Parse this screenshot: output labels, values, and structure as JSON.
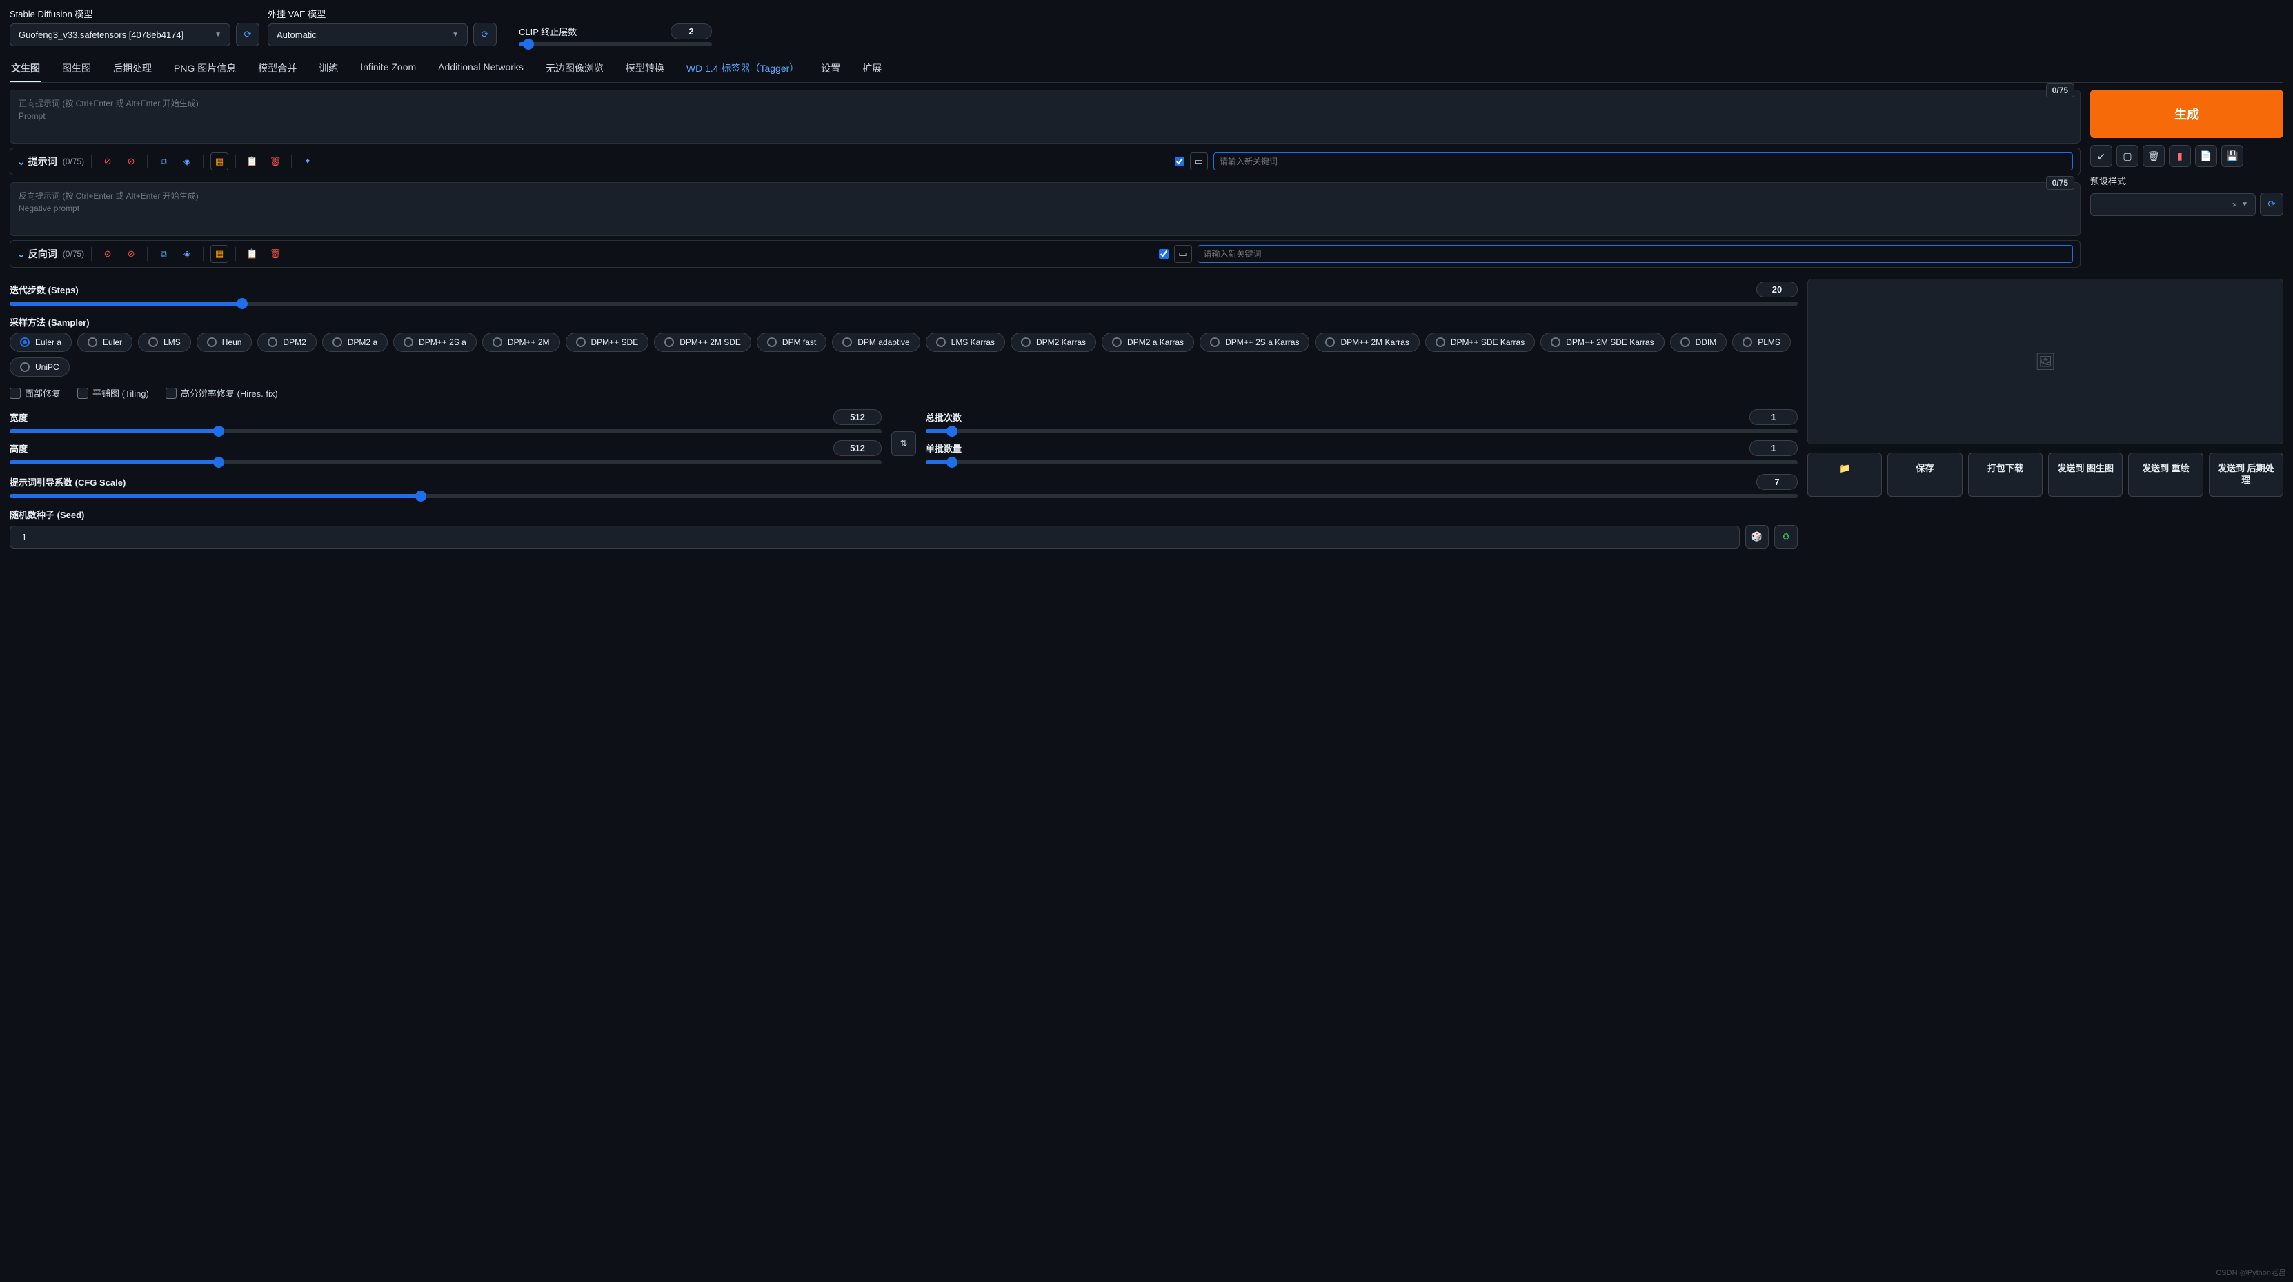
{
  "header": {
    "sd_label": "Stable Diffusion 模型",
    "sd_value": "Guofeng3_v33.safetensors [4078eb4174]",
    "vae_label": "外挂 VAE 模型",
    "vae_value": "Automatic",
    "clip_label": "CLIP 终止层数",
    "clip_value": "2",
    "clip_pct": 5
  },
  "tabs": [
    {
      "label": "文生图",
      "active": true
    },
    {
      "label": "图生图"
    },
    {
      "label": "后期处理"
    },
    {
      "label": "PNG 图片信息"
    },
    {
      "label": "模型合并"
    },
    {
      "label": "训练"
    },
    {
      "label": "Infinite Zoom"
    },
    {
      "label": "Additional Networks"
    },
    {
      "label": "无边图像浏览"
    },
    {
      "label": "模型转换"
    },
    {
      "label": "WD 1.4 标签器（Tagger）",
      "link": true
    },
    {
      "label": "设置"
    },
    {
      "label": "扩展"
    }
  ],
  "prompt": {
    "pos_placeholder1": "正向提示词 (按 Ctrl+Enter 或 Alt+Enter 开始生成)",
    "pos_placeholder2": "Prompt",
    "pos_counter": "0/75",
    "pos_bar_label": "提示词",
    "pos_bar_count": "(0/75)",
    "neg_placeholder1": "反向提示词 (按 Ctrl+Enter 或 Alt+Enter 开始生成)",
    "neg_placeholder2": "Negative prompt",
    "neg_counter": "0/75",
    "neg_bar_label": "反向词",
    "neg_bar_count": "(0/75)",
    "keyword_placeholder": "请输入新关键词"
  },
  "right": {
    "generate": "生成",
    "preset_label": "预设样式",
    "preset_clear": "×"
  },
  "params": {
    "steps_label": "迭代步数 (Steps)",
    "steps_value": "20",
    "steps_pct": 13,
    "sampler_label": "采样方法 (Sampler)",
    "samplers": [
      {
        "label": "Euler a",
        "checked": true
      },
      {
        "label": "Euler"
      },
      {
        "label": "LMS"
      },
      {
        "label": "Heun"
      },
      {
        "label": "DPM2"
      },
      {
        "label": "DPM2 a"
      },
      {
        "label": "DPM++ 2S a"
      },
      {
        "label": "DPM++ 2M"
      },
      {
        "label": "DPM++ SDE"
      },
      {
        "label": "DPM++ 2M SDE"
      },
      {
        "label": "DPM fast"
      },
      {
        "label": "DPM adaptive"
      },
      {
        "label": "LMS Karras"
      },
      {
        "label": "DPM2 Karras"
      },
      {
        "label": "DPM2 a Karras"
      },
      {
        "label": "DPM++ 2S a Karras"
      },
      {
        "label": "DPM++ 2M Karras"
      },
      {
        "label": "DPM++ SDE Karras"
      },
      {
        "label": "DPM++ 2M SDE Karras"
      },
      {
        "label": "DDIM"
      },
      {
        "label": "PLMS"
      },
      {
        "label": "UniPC"
      }
    ],
    "checks": [
      {
        "label": "面部修复"
      },
      {
        "label": "平铺图 (Tiling)"
      },
      {
        "label": "高分辨率修复 (Hires. fix)"
      }
    ],
    "width_label": "宽度",
    "width_value": "512",
    "width_pct": 24,
    "height_label": "高度",
    "height_value": "512",
    "height_pct": 24,
    "batch_count_label": "总批次数",
    "batch_count_value": "1",
    "batch_count_pct": 3,
    "batch_size_label": "单批数量",
    "batch_size_value": "1",
    "batch_size_pct": 3,
    "cfg_label": "提示词引导系数 (CFG Scale)",
    "cfg_value": "7",
    "cfg_pct": 23,
    "seed_label": "随机数种子 (Seed)",
    "seed_value": "-1"
  },
  "output": {
    "buttons": [
      "📁",
      "保存",
      "打包下载",
      "发送到 图生图",
      "发送到 重绘",
      "发送到 后期处理"
    ]
  },
  "watermark": "CSDN @Python老吕"
}
